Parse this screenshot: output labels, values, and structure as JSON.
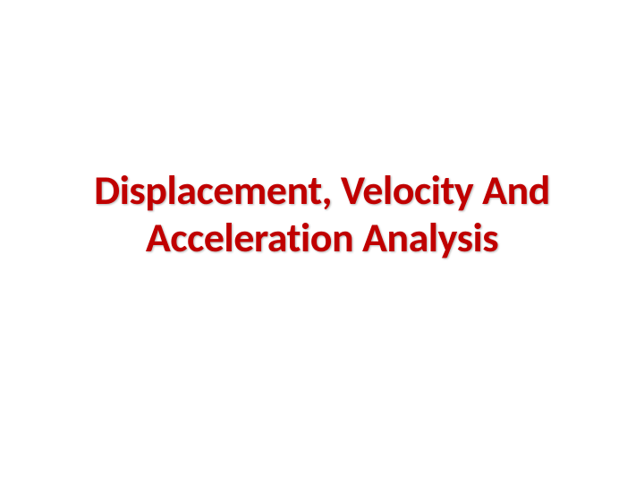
{
  "slide": {
    "title_line1": "Displacement, Velocity And",
    "title_line2": "Acceleration Analysis",
    "title_color": "#c00000",
    "background_color": "#ffffff",
    "font_family": "Calibri",
    "title_fontsize": 46,
    "title_fontweight": 700
  }
}
